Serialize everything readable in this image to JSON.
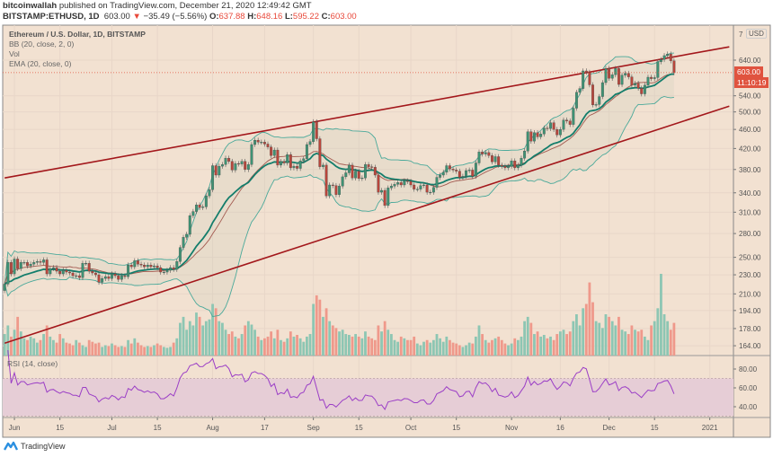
{
  "header": {
    "author": "bitcoinwallah",
    "published": "published on TradingView.com, December 21, 2020 12:49:42 GMT",
    "symbol": "BITSTAMP:ETHUSD, 1D",
    "last": "603.00",
    "change": "−35.49 (−5.56%)",
    "o_label": "O:",
    "o": "637.88",
    "h_label": "H:",
    "h": "648.16",
    "l_label": "L:",
    "l": "595.22",
    "c_label": "C:",
    "c": "603.00"
  },
  "legend": {
    "title": "Ethereum / U.S. Dollar, 1D, BITSTAMP",
    "bb": "BB (20, close, 2, 0)",
    "vol": "Vol",
    "ema": "EMA (20, close, 0)"
  },
  "rsi_label": "RSI (14, close)",
  "price_axis": {
    "currency": "USD",
    "top_partial": "7",
    "last_price": "603.00",
    "countdown": "11:10:19"
  },
  "branding": "TradingView",
  "colors": {
    "background": "#f2e1d1",
    "up": "#3e9274",
    "down": "#b8463c",
    "vol_up": "#8dc6b3",
    "vol_down": "#ef998b",
    "bb": "#4aa99a",
    "ema": "#137d6b",
    "basis": "#a35a50",
    "trend": "#a3171b",
    "rsi": "#9b3ec6",
    "rsi_band": "#e6cdd6",
    "last_price": "#e0533f"
  },
  "chart_data": {
    "type": "candlestick",
    "scale": "log",
    "start_date": "2020-05-29",
    "interval": "1D",
    "grid": true,
    "price_ticks": [
      640,
      540,
      500,
      460,
      420,
      380,
      340,
      310,
      280,
      250,
      230,
      210,
      194,
      178,
      164
    ],
    "price_tick_labels": [
      "640.00",
      "540.00",
      "500.00",
      "460.00",
      "420.00",
      "380.00",
      "340.00",
      "310.00",
      "280.00",
      "250.00",
      "230.00",
      "210.00",
      "194.00",
      "178.00",
      "164.00"
    ],
    "time_ticks": [
      {
        "date": "2020-06-01",
        "label": "Jun"
      },
      {
        "date": "2020-06-15",
        "label": "15"
      },
      {
        "date": "2020-07-01",
        "label": "Jul"
      },
      {
        "date": "2020-07-15",
        "label": "15"
      },
      {
        "date": "2020-08-01",
        "label": "Aug"
      },
      {
        "date": "2020-08-17",
        "label": "17"
      },
      {
        "date": "2020-09-01",
        "label": "Sep"
      },
      {
        "date": "2020-09-15",
        "label": "15"
      },
      {
        "date": "2020-10-01",
        "label": "Oct"
      },
      {
        "date": "2020-10-15",
        "label": "15"
      },
      {
        "date": "2020-11-01",
        "label": "Nov"
      },
      {
        "date": "2020-11-16",
        "label": "16"
      },
      {
        "date": "2020-12-01",
        "label": "Dec"
      },
      {
        "date": "2020-12-15",
        "label": "15"
      },
      {
        "date": "2021-01-01",
        "label": "2021"
      }
    ],
    "rsi_ticks": [
      80,
      60,
      40
    ],
    "rsi_tick_labels": [
      "80.00",
      "60.00",
      "40.00"
    ],
    "rsi_band": [
      30,
      70
    ],
    "close": [
      220,
      244,
      231,
      248,
      237,
      244,
      244,
      240,
      242,
      244,
      245,
      244,
      247,
      231,
      237,
      238,
      234,
      231,
      235,
      233,
      232,
      229,
      229,
      227,
      243,
      243,
      234,
      232,
      230,
      222,
      226,
      228,
      226,
      231,
      229,
      225,
      229,
      228,
      241,
      239,
      246,
      242,
      241,
      239,
      241,
      239,
      240,
      238,
      233,
      233,
      235,
      238,
      236,
      245,
      262,
      275,
      279,
      305,
      311,
      321,
      317,
      318,
      335,
      345,
      387,
      370,
      386,
      389,
      401,
      395,
      379,
      391,
      390,
      395,
      380,
      389,
      428,
      437,
      433,
      433,
      429,
      423,
      406,
      417,
      388,
      395,
      392,
      408,
      383,
      386,
      382,
      396,
      400,
      428,
      434,
      477,
      440,
      385,
      388,
      335,
      353,
      352,
      337,
      351,
      367,
      374,
      388,
      365,
      377,
      364,
      365,
      389,
      385,
      384,
      370,
      341,
      344,
      320,
      348,
      351,
      354,
      357,
      353,
      360,
      359,
      353,
      346,
      346,
      352,
      353,
      341,
      341,
      349,
      366,
      370,
      375,
      387,
      381,
      379,
      377,
      366,
      368,
      378,
      379,
      368,
      392,
      413,
      409,
      412,
      406,
      394,
      404,
      388,
      386,
      383,
      386,
      396,
      383,
      388,
      401,
      415,
      455,
      435,
      453,
      444,
      450,
      463,
      462,
      475,
      460,
      448,
      460,
      481,
      479,
      471,
      509,
      549,
      559,
      608,
      604,
      569,
      517,
      518,
      538,
      575,
      615,
      587,
      597,
      615,
      570,
      596,
      601,
      591,
      568,
      573,
      560,
      545,
      568,
      590,
      586,
      589,
      635,
      642,
      654,
      659,
      638,
      603
    ],
    "volume_relative": [
      25,
      35,
      22,
      30,
      45,
      28,
      20,
      18,
      22,
      20,
      15,
      18,
      25,
      35,
      22,
      18,
      15,
      25,
      20,
      15,
      14,
      12,
      18,
      15,
      12,
      10,
      18,
      16,
      14,
      15,
      10,
      12,
      11,
      14,
      12,
      10,
      11,
      10,
      18,
      14,
      20,
      15,
      12,
      10,
      11,
      10,
      12,
      14,
      12,
      10,
      9,
      10,
      15,
      20,
      38,
      45,
      30,
      40,
      35,
      50,
      45,
      35,
      40,
      42,
      60,
      55,
      40,
      38,
      30,
      25,
      28,
      22,
      20,
      25,
      35,
      40,
      36,
      30,
      22,
      18,
      20,
      22,
      28,
      20,
      30,
      18,
      16,
      20,
      28,
      22,
      24,
      20,
      16,
      22,
      25,
      60,
      70,
      65,
      45,
      55,
      40,
      35,
      32,
      28,
      30,
      25,
      24,
      22,
      25,
      22,
      20,
      28,
      22,
      20,
      18,
      35,
      28,
      40,
      30,
      25,
      18,
      16,
      22,
      20,
      18,
      18,
      22,
      14,
      12,
      16,
      18,
      15,
      18,
      25,
      20,
      16,
      22,
      18,
      15,
      14,
      12,
      10,
      12,
      15,
      14,
      22,
      35,
      25,
      18,
      15,
      18,
      20,
      22,
      18,
      14,
      12,
      14,
      20,
      18,
      22,
      40,
      45,
      38,
      25,
      28,
      22,
      24,
      20,
      22,
      18,
      25,
      28,
      30,
      25,
      28,
      40,
      48,
      35,
      55,
      60,
      85,
      62,
      40,
      38,
      32,
      48,
      45,
      40,
      35,
      45,
      30,
      28,
      25,
      35,
      30,
      28,
      30,
      22,
      18,
      35,
      40,
      55,
      95,
      48,
      40,
      30,
      38
    ],
    "trendlines": [
      {
        "from": {
          "date": "2020-05-29",
          "price": 365
        },
        "to": {
          "date": "2021-01-07",
          "price": 682
        }
      },
      {
        "from": {
          "date": "2020-05-29",
          "price": 166
        },
        "to": {
          "date": "2021-01-07",
          "price": 514
        }
      }
    ],
    "indicators": {
      "bb": {
        "length": 20,
        "mult": 2
      },
      "ema": {
        "length": 20
      },
      "rsi": {
        "length": 14
      }
    }
  }
}
